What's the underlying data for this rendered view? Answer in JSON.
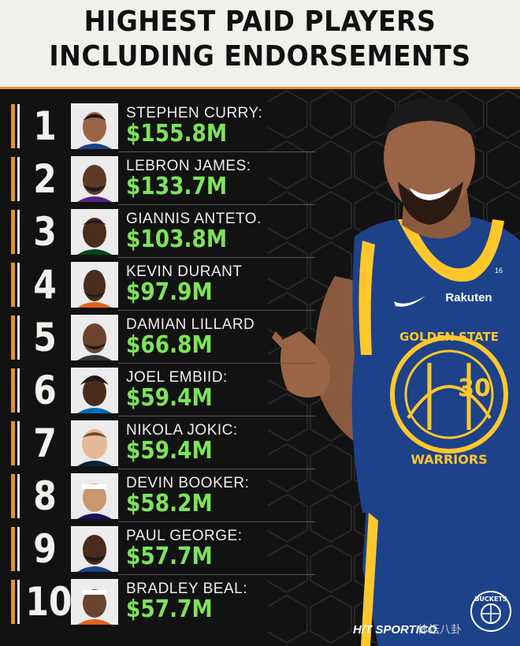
{
  "title": {
    "line1": "HIGHEST PAID PLAYERS",
    "line2": "INCLUDING ENDORSEMENTS"
  },
  "players": [
    {
      "rank": "1",
      "name": "STEPHEN CURRY:",
      "amount": "$155.8M"
    },
    {
      "rank": "2",
      "name": "LEBRON JAMES:",
      "amount": "$133.7M"
    },
    {
      "rank": "3",
      "name": "GIANNIS ANTETO.",
      "amount": "$103.8M"
    },
    {
      "rank": "4",
      "name": "KEVIN DURANT",
      "amount": "$97.9M"
    },
    {
      "rank": "5",
      "name": "DAMIAN LILLARD",
      "amount": "$66.8M"
    },
    {
      "rank": "6",
      "name": "JOEL EMBIID:",
      "amount": "$59.4M"
    },
    {
      "rank": "7",
      "name": "NIKOLA JOKIC:",
      "amount": "$59.4M"
    },
    {
      "rank": "8",
      "name": "DEVIN BOOKER:",
      "amount": "$58.2M"
    },
    {
      "rank": "9",
      "name": "PAUL GEORGE:",
      "amount": "$57.7M"
    },
    {
      "rank": "10",
      "name": "BRADLEY BEAL:",
      "amount": "$57.7M"
    }
  ],
  "jersey": {
    "team": "GOLDEN STATE",
    "team_bottom": "WARRIORS",
    "number": "30",
    "sponsor": "Rakuten",
    "patch_number": "16"
  },
  "logo_text": "BUCKETS",
  "source": "H/T SPORTICO",
  "watermark": "体坛八卦",
  "colors": {
    "accent_orange": "#e8912a",
    "money_green": "#7de35a",
    "header_bg": "#f2f0ec",
    "warriors_blue": "#1d428a",
    "warriors_gold": "#ffc72c"
  }
}
